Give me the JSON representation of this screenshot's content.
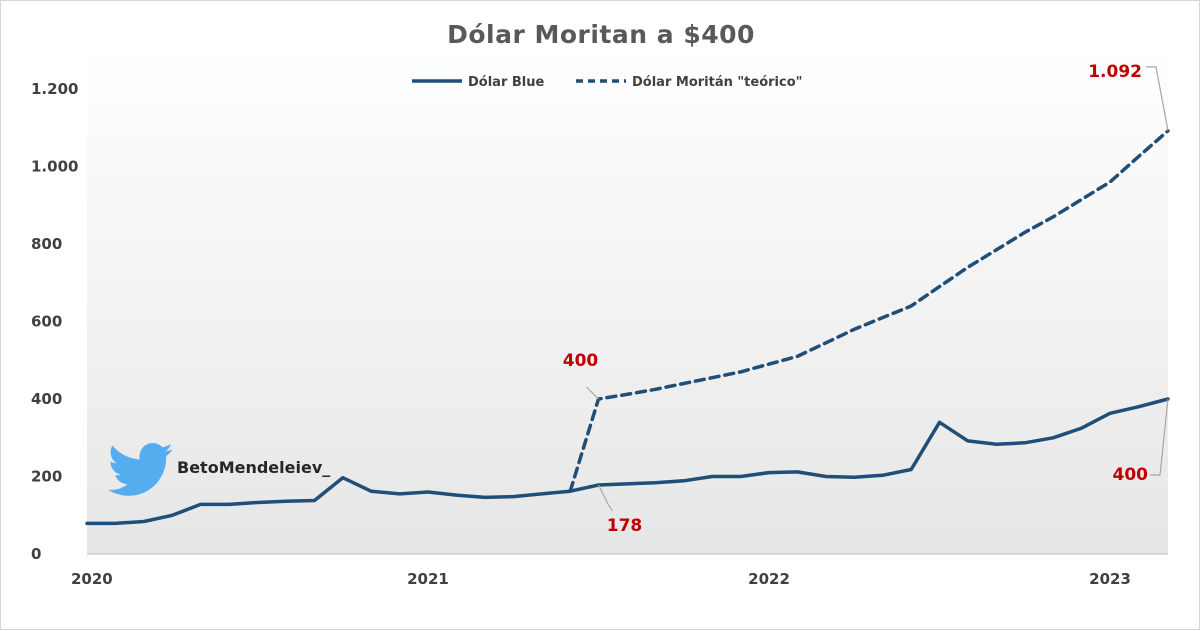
{
  "chart_data": {
    "type": "line",
    "title": "Dólar Moritan a $400",
    "xlabel": "",
    "ylabel": "",
    "ylim": [
      0,
      1200
    ],
    "yticks": [
      0,
      200,
      400,
      600,
      800,
      1000,
      1200
    ],
    "ytick_labels": [
      "0",
      "200",
      "400",
      "600",
      "800",
      "1.000",
      "1.200"
    ],
    "xlim": [
      2020.0,
      2023.17
    ],
    "xticks": [
      2020,
      2021,
      2022,
      2023
    ],
    "xtick_labels": [
      "2020",
      "2021",
      "2022",
      "2023"
    ],
    "grid": false,
    "legend_position": "top-center",
    "series": [
      {
        "name": "Dólar Blue",
        "style": "solid",
        "color": "#1f4e79",
        "x": [
          2020.0,
          2020.083,
          2020.167,
          2020.25,
          2020.333,
          2020.417,
          2020.5,
          2020.583,
          2020.667,
          2020.75,
          2020.833,
          2020.917,
          2021.0,
          2021.083,
          2021.167,
          2021.25,
          2021.333,
          2021.417,
          2021.5,
          2021.583,
          2021.667,
          2021.75,
          2021.833,
          2021.917,
          2022.0,
          2022.083,
          2022.167,
          2022.25,
          2022.333,
          2022.417,
          2022.5,
          2022.583,
          2022.667,
          2022.75,
          2022.833,
          2022.917,
          2023.0,
          2023.083,
          2023.17
        ],
        "values": [
          79,
          79,
          84,
          100,
          128,
          128,
          133,
          136,
          138,
          197,
          162,
          155,
          160,
          152,
          146,
          148,
          155,
          162,
          178,
          181,
          184,
          189,
          200,
          200,
          210,
          212,
          200,
          198,
          203,
          218,
          340,
          292,
          283,
          287,
          300,
          325,
          363,
          380,
          400
        ]
      },
      {
        "name": "Dólar Moritán \"teórico\"",
        "style": "dashed",
        "color": "#1f4e79",
        "x": [
          2021.417,
          2021.5,
          2021.583,
          2021.667,
          2021.75,
          2021.833,
          2021.917,
          2022.0,
          2022.083,
          2022.167,
          2022.25,
          2022.333,
          2022.417,
          2022.5,
          2022.583,
          2022.667,
          2022.75,
          2022.833,
          2022.917,
          2023.0,
          2023.083,
          2023.17
        ],
        "values": [
          162,
          400,
          412,
          425,
          440,
          455,
          470,
          490,
          510,
          545,
          580,
          610,
          640,
          690,
          740,
          785,
          830,
          870,
          915,
          960,
          1025,
          1092
        ]
      }
    ],
    "annotations": [
      {
        "label": "400",
        "series": 1,
        "point": 1
      },
      {
        "label": "178",
        "series": 0,
        "point": 18
      },
      {
        "label": "1.092",
        "series": 1,
        "point": 21
      },
      {
        "label": "400",
        "series": 0,
        "point": 38
      }
    ],
    "watermark": {
      "handle": "BetoMendeleiev_",
      "icon": "twitter-bird-icon"
    }
  }
}
